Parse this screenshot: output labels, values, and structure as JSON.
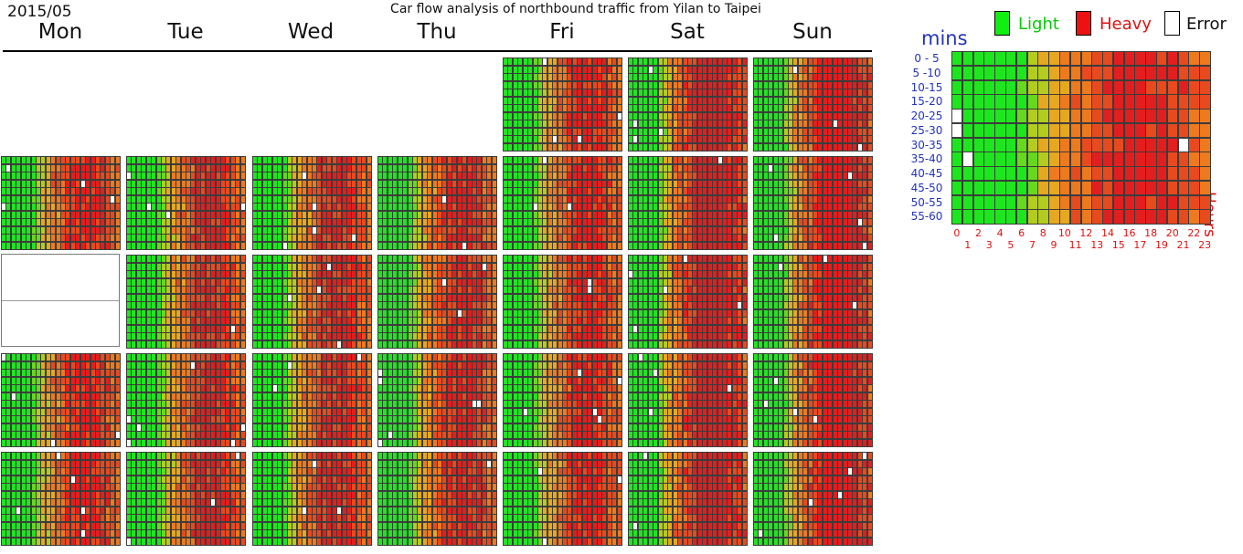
{
  "chart_data": {
    "type": "heatmap",
    "title": "Car flow analysis of northbound traffic from Yilan to Taipei",
    "month": "2015/05",
    "weekdays": [
      "Mon",
      "Tue",
      "Wed",
      "Thu",
      "Fri",
      "Sat",
      "Sun"
    ],
    "first_day_weekday": "Fri",
    "days_in_month": 31,
    "missing_days": [
      11
    ],
    "legend": [
      {
        "label": "Light",
        "color": "#00ee00",
        "text_color": "#00cc00"
      },
      {
        "label": "Heavy",
        "color": "#ee0000",
        "text_color": "#e01010"
      },
      {
        "label": "Error",
        "color": "#ffffff",
        "text_color": "#111111"
      }
    ],
    "color_scale": [
      "#1ee61e",
      "#66d91e",
      "#b3cc1e",
      "#e6a81e",
      "#ee7a1e",
      "#e84a1e",
      "#e31e1e"
    ],
    "ylabel": "mins",
    "xlabel": "Hours",
    "y_intervals": [
      "0 - 5",
      "5 -10",
      "10-15",
      "15-20",
      "20-25",
      "25-30",
      "30-35",
      "35-40",
      "40-45",
      "45-50",
      "50-55",
      "55-60"
    ],
    "x_ticks_even": [
      "0",
      "2",
      "4",
      "6",
      "8",
      "10",
      "12",
      "14",
      "16",
      "18",
      "20",
      "22"
    ],
    "x_ticks_odd": [
      "1",
      "3",
      "5",
      "7",
      "9",
      "11",
      "13",
      "15",
      "17",
      "19",
      "21",
      "23"
    ],
    "hour_level": [
      0,
      0,
      0,
      0,
      0,
      0,
      0.5,
      1.5,
      2.5,
      3.2,
      3.8,
      4.2,
      4.6,
      5.2,
      5.6,
      5.9,
      6.0,
      6.0,
      6.0,
      5.8,
      5.4,
      5.0,
      4.6,
      4.3
    ]
  }
}
